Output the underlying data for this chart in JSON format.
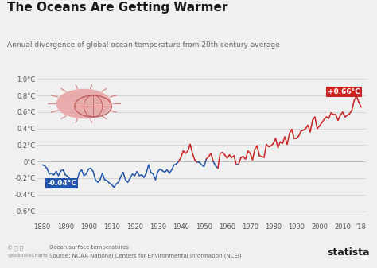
{
  "title": "The Oceans Are Getting Warmer",
  "subtitle": "Annual divergence of global ocean temperature from 20th century average",
  "title_color": "#1a1a1a",
  "bg_color": "#f0f0f0",
  "plot_bg_color": "#f0f0f0",
  "years": [
    1880,
    1881,
    1882,
    1883,
    1884,
    1885,
    1886,
    1887,
    1888,
    1889,
    1890,
    1891,
    1892,
    1893,
    1894,
    1895,
    1896,
    1897,
    1898,
    1899,
    1900,
    1901,
    1902,
    1903,
    1904,
    1905,
    1906,
    1907,
    1908,
    1909,
    1910,
    1911,
    1912,
    1913,
    1914,
    1915,
    1916,
    1917,
    1918,
    1919,
    1920,
    1921,
    1922,
    1923,
    1924,
    1925,
    1926,
    1927,
    1928,
    1929,
    1930,
    1931,
    1932,
    1933,
    1934,
    1935,
    1936,
    1937,
    1938,
    1939,
    1940,
    1941,
    1942,
    1943,
    1944,
    1945,
    1946,
    1947,
    1948,
    1949,
    1950,
    1951,
    1952,
    1953,
    1954,
    1955,
    1956,
    1957,
    1958,
    1959,
    1960,
    1961,
    1962,
    1963,
    1964,
    1965,
    1966,
    1967,
    1968,
    1969,
    1970,
    1971,
    1972,
    1973,
    1974,
    1975,
    1976,
    1977,
    1978,
    1979,
    1980,
    1981,
    1982,
    1983,
    1984,
    1985,
    1986,
    1987,
    1988,
    1989,
    1990,
    1991,
    1992,
    1993,
    1994,
    1995,
    1996,
    1997,
    1998,
    1999,
    2000,
    2001,
    2002,
    2003,
    2004,
    2005,
    2006,
    2007,
    2008,
    2009,
    2010,
    2011,
    2012,
    2013,
    2014,
    2015,
    2016,
    2017,
    2018
  ],
  "values": [
    -0.04,
    -0.05,
    -0.08,
    -0.15,
    -0.14,
    -0.16,
    -0.12,
    -0.17,
    -0.11,
    -0.1,
    -0.16,
    -0.18,
    -0.21,
    -0.22,
    -0.22,
    -0.23,
    -0.13,
    -0.1,
    -0.17,
    -0.15,
    -0.09,
    -0.08,
    -0.12,
    -0.22,
    -0.25,
    -0.22,
    -0.14,
    -0.22,
    -0.23,
    -0.26,
    -0.28,
    -0.31,
    -0.27,
    -0.25,
    -0.18,
    -0.13,
    -0.22,
    -0.25,
    -0.2,
    -0.15,
    -0.17,
    -0.12,
    -0.17,
    -0.16,
    -0.19,
    -0.14,
    -0.04,
    -0.13,
    -0.15,
    -0.22,
    -0.12,
    -0.09,
    -0.11,
    -0.13,
    -0.1,
    -0.14,
    -0.1,
    -0.04,
    -0.03,
    0.0,
    0.05,
    0.13,
    0.1,
    0.13,
    0.21,
    0.1,
    0.02,
    -0.01,
    -0.01,
    -0.04,
    -0.06,
    0.03,
    0.06,
    0.1,
    0.0,
    -0.05,
    -0.08,
    0.1,
    0.11,
    0.08,
    0.04,
    0.08,
    0.05,
    0.07,
    -0.04,
    -0.03,
    0.05,
    0.06,
    0.03,
    0.13,
    0.1,
    0.02,
    0.15,
    0.19,
    0.07,
    0.06,
    0.05,
    0.21,
    0.18,
    0.19,
    0.22,
    0.28,
    0.17,
    0.24,
    0.22,
    0.3,
    0.21,
    0.34,
    0.39,
    0.28,
    0.28,
    0.31,
    0.37,
    0.38,
    0.4,
    0.44,
    0.36,
    0.5,
    0.54,
    0.4,
    0.43,
    0.47,
    0.51,
    0.54,
    0.52,
    0.59,
    0.57,
    0.57,
    0.5,
    0.56,
    0.6,
    0.54,
    0.56,
    0.58,
    0.62,
    0.74,
    0.79,
    0.72,
    0.66
  ],
  "color_positive": "#cc2222",
  "color_negative": "#2255aa",
  "label_neg": "-0.04°C",
  "label_pos": "+0.66°C",
  "xlim": [
    1878,
    2020
  ],
  "ylim": [
    -0.72,
    1.08
  ],
  "yticks": [
    -0.6,
    -0.4,
    -0.2,
    0.0,
    0.2,
    0.4,
    0.6,
    0.8,
    1.0
  ],
  "ytick_labels": [
    "-0.6°C",
    "-0.4°C",
    "-0.2°C",
    "0°C",
    "0.2°C",
    "0.4°C",
    "0.6°C",
    "0.8°C",
    "1.0°C"
  ],
  "xticks": [
    1880,
    1890,
    1900,
    1910,
    1920,
    1930,
    1940,
    1950,
    1960,
    1970,
    1980,
    1990,
    2000,
    2010,
    2018
  ],
  "xtick_labels": [
    "1880",
    "1890",
    "1900",
    "1910",
    "1920",
    "1930",
    "1940",
    "1950",
    "1960",
    "1970",
    "1980",
    "1990",
    "2000",
    "2010",
    "'18"
  ],
  "source_line1": "Ocean surface temperatures",
  "source_line2": "Source: NOAA National Centers for Environmental Information (NCEI)",
  "statista_text": "statista",
  "footer_left": "@StatistaCharts",
  "sun_color": "#e8a0a0",
  "sun_ray_color": "#d07070",
  "globe_color": "#c06060"
}
